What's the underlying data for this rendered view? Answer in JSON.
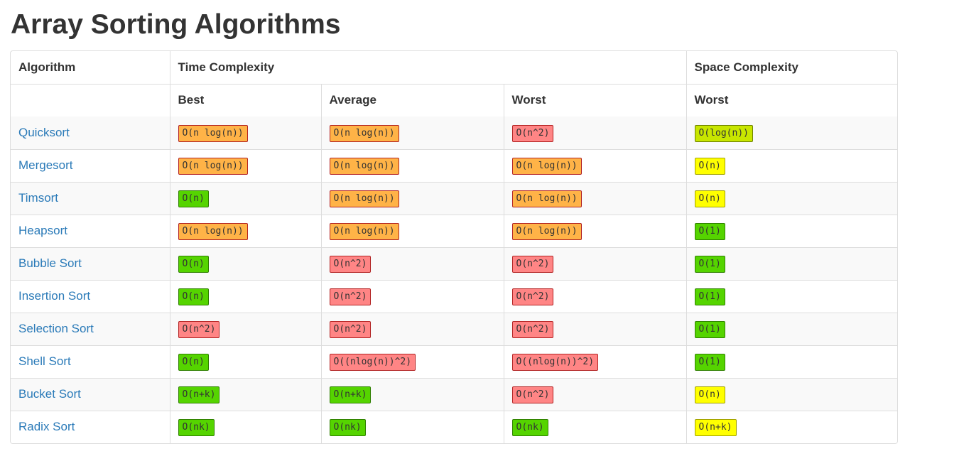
{
  "title": "Array Sorting Algorithms",
  "header": {
    "algorithm": "Algorithm",
    "time_complexity": "Time Complexity",
    "space_complexity": "Space Complexity",
    "best": "Best",
    "average": "Average",
    "worst_time": "Worst",
    "worst_space": "Worst"
  },
  "colors": {
    "orange": "#ffb347",
    "red": "#ff8585",
    "green": "#55d400",
    "yellow": "#ffff00",
    "lime": "#c8e600",
    "link": "#2a7ab8"
  },
  "rows": [
    {
      "name": "Quicksort",
      "best": {
        "text": "O(n log(n))",
        "color": "orange"
      },
      "average": {
        "text": "O(n log(n))",
        "color": "orange"
      },
      "worst": {
        "text": "O(n^2)",
        "color": "red"
      },
      "space": {
        "text": "O(log(n))",
        "color": "lime"
      }
    },
    {
      "name": "Mergesort",
      "best": {
        "text": "O(n log(n))",
        "color": "orange"
      },
      "average": {
        "text": "O(n log(n))",
        "color": "orange"
      },
      "worst": {
        "text": "O(n log(n))",
        "color": "orange"
      },
      "space": {
        "text": "O(n)",
        "color": "yellow"
      }
    },
    {
      "name": "Timsort",
      "best": {
        "text": "O(n)",
        "color": "green"
      },
      "average": {
        "text": "O(n log(n))",
        "color": "orange"
      },
      "worst": {
        "text": "O(n log(n))",
        "color": "orange"
      },
      "space": {
        "text": "O(n)",
        "color": "yellow"
      }
    },
    {
      "name": "Heapsort",
      "best": {
        "text": "O(n log(n))",
        "color": "orange"
      },
      "average": {
        "text": "O(n log(n))",
        "color": "orange"
      },
      "worst": {
        "text": "O(n log(n))",
        "color": "orange"
      },
      "space": {
        "text": "O(1)",
        "color": "green"
      }
    },
    {
      "name": "Bubble Sort",
      "best": {
        "text": "O(n)",
        "color": "green"
      },
      "average": {
        "text": "O(n^2)",
        "color": "red"
      },
      "worst": {
        "text": "O(n^2)",
        "color": "red"
      },
      "space": {
        "text": "O(1)",
        "color": "green"
      }
    },
    {
      "name": "Insertion Sort",
      "best": {
        "text": "O(n)",
        "color": "green"
      },
      "average": {
        "text": "O(n^2)",
        "color": "red"
      },
      "worst": {
        "text": "O(n^2)",
        "color": "red"
      },
      "space": {
        "text": "O(1)",
        "color": "green"
      }
    },
    {
      "name": "Selection Sort",
      "best": {
        "text": "O(n^2)",
        "color": "red"
      },
      "average": {
        "text": "O(n^2)",
        "color": "red"
      },
      "worst": {
        "text": "O(n^2)",
        "color": "red"
      },
      "space": {
        "text": "O(1)",
        "color": "green"
      }
    },
    {
      "name": "Shell Sort",
      "best": {
        "text": "O(n)",
        "color": "green"
      },
      "average": {
        "text": "O((nlog(n))^2)",
        "color": "red"
      },
      "worst": {
        "text": "O((nlog(n))^2)",
        "color": "red"
      },
      "space": {
        "text": "O(1)",
        "color": "green"
      }
    },
    {
      "name": "Bucket Sort",
      "best": {
        "text": "O(n+k)",
        "color": "green"
      },
      "average": {
        "text": "O(n+k)",
        "color": "green"
      },
      "worst": {
        "text": "O(n^2)",
        "color": "red"
      },
      "space": {
        "text": "O(n)",
        "color": "yellow"
      }
    },
    {
      "name": "Radix Sort",
      "best": {
        "text": "O(nk)",
        "color": "green"
      },
      "average": {
        "text": "O(nk)",
        "color": "green"
      },
      "worst": {
        "text": "O(nk)",
        "color": "green"
      },
      "space": {
        "text": "O(n+k)",
        "color": "yellow"
      }
    }
  ]
}
